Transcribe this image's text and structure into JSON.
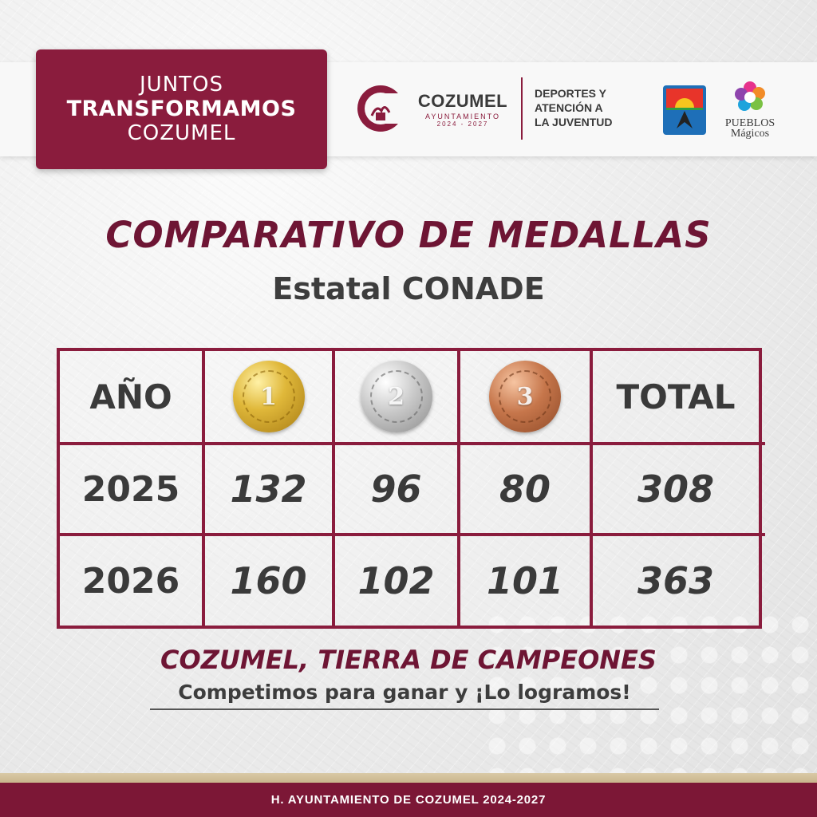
{
  "header": {
    "slogan_line1": "JUNTOS",
    "slogan_line2": "TRANSFORMAMOS",
    "slogan_line3": "COZUMEL",
    "municipality_name": "COZUMEL",
    "municipality_sub": "AYUNTAMIENTO",
    "municipality_years": "2024 - 2027",
    "department": [
      "DEPORTES Y",
      "ATENCIÓN A",
      "LA JUVENTUD"
    ],
    "pueblos_line1": "PUEBLOS",
    "pueblos_line2": "Mágicos"
  },
  "title": "COMPARATIVO DE MEDALLAS",
  "subtitle": "Estatal CONADE",
  "table": {
    "headers": {
      "year": "AÑO",
      "gold": "1",
      "silver": "2",
      "bronze": "3",
      "total": "TOTAL"
    },
    "rows": [
      {
        "year": "2025",
        "gold": "132",
        "silver": "96",
        "bronze": "80",
        "total": "308"
      },
      {
        "year": "2026",
        "gold": "160",
        "silver": "102",
        "bronze": "101",
        "total": "363"
      }
    ]
  },
  "tagline": "COZUMEL, TIERRA DE CAMPEONES",
  "motto": "Competimos para ganar y ¡Lo logramos!",
  "footer": "H. AYUNTAMIENTO DE COZUMEL 2024-2027",
  "colors": {
    "brand": "#8a1c3d",
    "gold": "#d4a72c",
    "silver": "#b8b8b8",
    "bronze": "#b8683f"
  }
}
